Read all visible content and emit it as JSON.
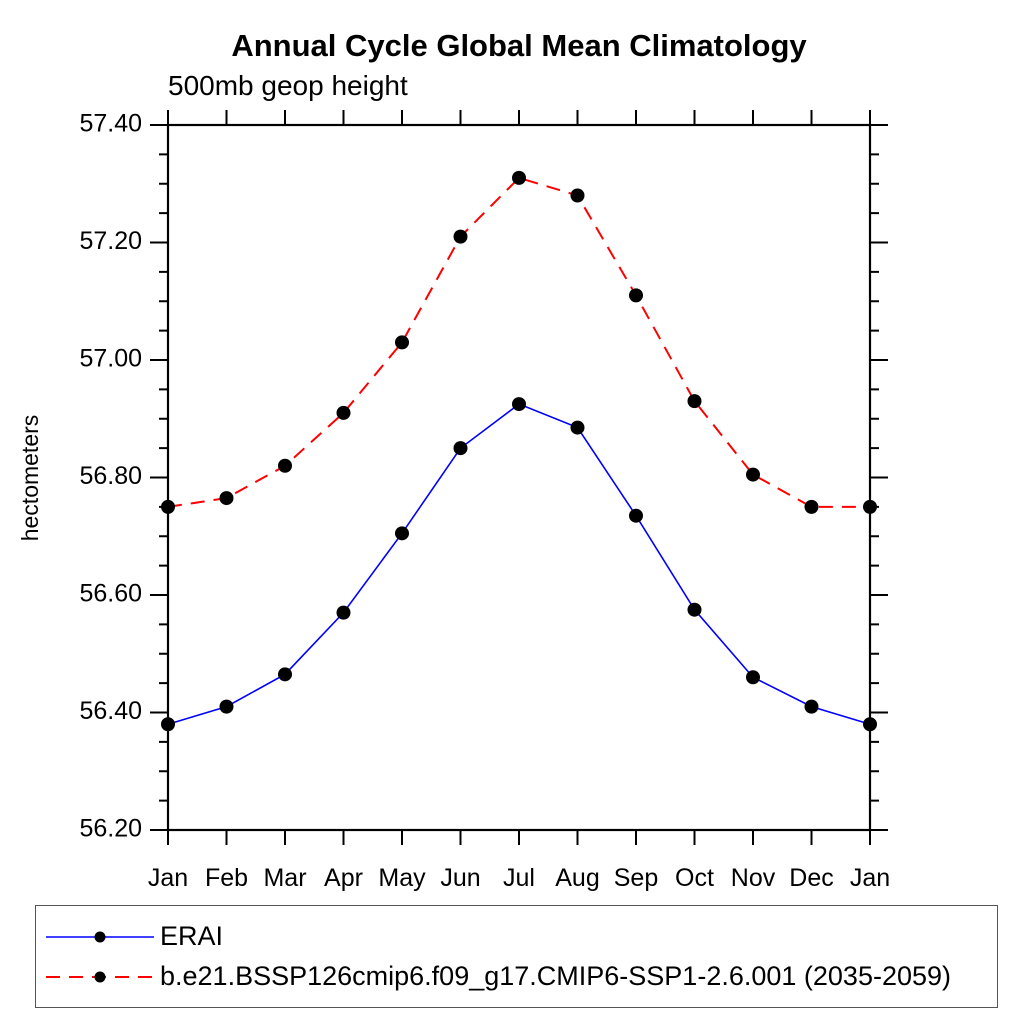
{
  "chart_data": {
    "type": "line",
    "title": "Annual Cycle Global Mean Climatology",
    "subtitle": "500mb geop height",
    "ylabel": "hectometers",
    "xlabel": "",
    "categories": [
      "Jan",
      "Feb",
      "Mar",
      "Apr",
      "May",
      "Jun",
      "Jul",
      "Aug",
      "Sep",
      "Oct",
      "Nov",
      "Dec",
      "Jan"
    ],
    "ylim": [
      56.2,
      57.4
    ],
    "ytick_major_step": 0.2,
    "ytick_minor_step": 0.05,
    "ytick_label_format": "2-decimals",
    "grid": false,
    "legend_position": "bottom",
    "frame_color": "#000000",
    "series": [
      {
        "name": "ERAI",
        "color": "#0000ff",
        "line_style": "solid",
        "marker": "filled-circle",
        "marker_color": "#000000",
        "values": [
          56.38,
          56.41,
          56.465,
          56.57,
          56.705,
          56.85,
          56.925,
          56.885,
          56.735,
          56.575,
          56.46,
          56.41,
          56.38
        ]
      },
      {
        "name": "b.e21.BSSP126cmip6.f09_g17.CMIP6-SSP1-2.6.001 (2035-2059)",
        "color": "#ff0000",
        "line_style": "dashed",
        "marker": "filled-circle",
        "marker_color": "#000000",
        "values": [
          56.75,
          56.765,
          56.82,
          56.91,
          57.03,
          57.21,
          57.31,
          57.28,
          57.11,
          56.93,
          56.805,
          56.75,
          56.75
        ]
      }
    ]
  }
}
